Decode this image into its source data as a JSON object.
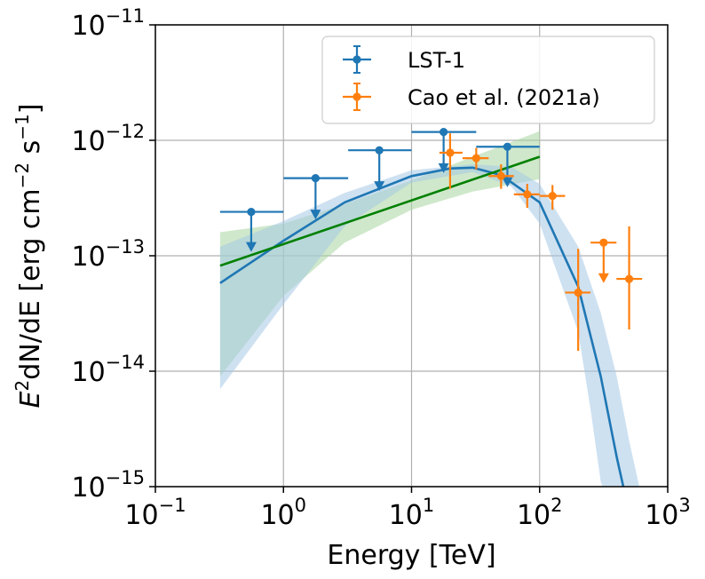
{
  "chart_data": {
    "type": "scatter",
    "xlabel": "Energy [TeV]",
    "ylabel_parts": [
      "E",
      "2",
      "dN/dE [erg cm",
      "−2",
      " s",
      "−1",
      "]"
    ],
    "x_scale": "log",
    "y_scale": "log",
    "xlim": [
      0.1,
      1000
    ],
    "ylim": [
      1e-15,
      1e-11
    ],
    "grid": true,
    "legend_position": "upper-right",
    "x_ticks": [
      {
        "value": 0.1,
        "base": "10",
        "exp": "−1"
      },
      {
        "value": 1,
        "base": "10",
        "exp": "0"
      },
      {
        "value": 10,
        "base": "10",
        "exp": "1"
      },
      {
        "value": 100,
        "base": "10",
        "exp": "2"
      },
      {
        "value": 1000,
        "base": "10",
        "exp": "3"
      }
    ],
    "y_ticks": [
      {
        "value": 1e-15,
        "base": "10",
        "exp": "−15"
      },
      {
        "value": 1e-14,
        "base": "10",
        "exp": "−14"
      },
      {
        "value": 1e-13,
        "base": "10",
        "exp": "−13"
      },
      {
        "value": 1e-12,
        "base": "10",
        "exp": "−12"
      },
      {
        "value": 1e-11,
        "base": "10",
        "exp": "−11"
      }
    ],
    "series": [
      {
        "name": "LST-1",
        "color": "#1f77b4",
        "kind": "upper_limits",
        "points": [
          {
            "x": 0.56,
            "xlo": 0.32,
            "xhi": 1.0,
            "y": 2.4e-13,
            "y_arrow_end": 1.1e-13
          },
          {
            "x": 1.78,
            "xlo": 1.0,
            "xhi": 3.2,
            "y": 4.7e-13,
            "y_arrow_end": 2.1e-13
          },
          {
            "x": 5.6,
            "xlo": 3.2,
            "xhi": 10.0,
            "y": 8.2e-13,
            "y_arrow_end": 3.7e-13
          },
          {
            "x": 17.8,
            "xlo": 10.0,
            "xhi": 32.0,
            "y": 1.18e-12,
            "y_arrow_end": 5.3e-13
          },
          {
            "x": 56.0,
            "xlo": 32.0,
            "xhi": 100.0,
            "y": 8.8e-13,
            "y_arrow_end": 4e-13
          }
        ]
      },
      {
        "name": "Cao et al. (2021a)",
        "color": "#ff7f0e",
        "kind": "points",
        "points": [
          {
            "x": 20,
            "xlo": 16.5,
            "xhi": 25,
            "y": 7.8e-13,
            "ylo": 3.8e-13,
            "yhi": 1.15e-12
          },
          {
            "x": 32,
            "xlo": 25,
            "xhi": 40,
            "y": 7e-13,
            "ylo": 5.6e-13,
            "yhi": 8.6e-13
          },
          {
            "x": 50,
            "xlo": 40,
            "xhi": 63,
            "y": 4.9e-13,
            "ylo": 3.8e-13,
            "yhi": 6.2e-13
          },
          {
            "x": 80,
            "xlo": 63,
            "xhi": 100,
            "y": 3.4e-13,
            "ylo": 2.6e-13,
            "yhi": 4.2e-13
          },
          {
            "x": 126,
            "xlo": 100,
            "xhi": 158,
            "y": 3.3e-13,
            "ylo": 2.5e-13,
            "yhi": 4.1e-13
          },
          {
            "x": 200,
            "xlo": 158,
            "xhi": 250,
            "y": 4.8e-14,
            "ylo": 1.5e-14,
            "yhi": 1.15e-13
          },
          {
            "x": 316,
            "xlo": 250,
            "xhi": 398,
            "y": 1.3e-13,
            "ul": true,
            "y_arrow_end": 5.9e-14
          },
          {
            "x": 500,
            "xlo": 398,
            "xhi": 631,
            "y": 6.3e-14,
            "ylo": 2.3e-14,
            "yhi": 1.8e-13
          }
        ]
      }
    ],
    "models": [
      {
        "kind": "log_parabola_fit",
        "color": "#1f77b4",
        "band_color": "#a6c8e6",
        "curve": [
          [
            0.32,
            5.8e-14
          ],
          [
            1,
            1.35e-13
          ],
          [
            3,
            2.9e-13
          ],
          [
            10,
            4.9e-13
          ],
          [
            20,
            5.7e-13
          ],
          [
            30,
            5.8e-13
          ],
          [
            50,
            5e-13
          ],
          [
            100,
            2.9e-13
          ],
          [
            200,
            5.4e-14
          ],
          [
            300,
            9e-15
          ],
          [
            400,
            1.8e-15
          ],
          [
            450,
            1e-15
          ]
        ],
        "band_upper": [
          [
            0.32,
            1.2e-13
          ],
          [
            1,
            2e-13
          ],
          [
            3,
            3.5e-13
          ],
          [
            10,
            5.5e-13
          ],
          [
            30,
            6.2e-13
          ],
          [
            60,
            5.9e-13
          ],
          [
            100,
            4.2e-13
          ],
          [
            200,
            1.2e-13
          ],
          [
            300,
            3.2e-14
          ],
          [
            400,
            9e-15
          ],
          [
            500,
            2.5e-15
          ],
          [
            600,
            1e-15
          ]
        ],
        "band_lower": [
          [
            0.32,
            7e-15
          ],
          [
            1,
            3.8e-14
          ],
          [
            3,
            1.8e-13
          ],
          [
            10,
            4.3e-13
          ],
          [
            30,
            5.3e-13
          ],
          [
            60,
            4e-13
          ],
          [
            100,
            1.9e-13
          ],
          [
            200,
            2.2e-14
          ],
          [
            250,
            4.6e-15
          ],
          [
            300,
            1.1e-15
          ],
          [
            310,
            1e-15
          ]
        ]
      },
      {
        "kind": "power_law_fit",
        "color": "#008000",
        "band_color": "#a8d5a0",
        "curve": [
          [
            0.32,
            8.2e-14
          ],
          [
            100,
            7.2e-13
          ]
        ],
        "band_upper": [
          [
            0.32,
            1.6e-13
          ],
          [
            1,
            1.9e-13
          ],
          [
            3,
            2.8e-13
          ],
          [
            10,
            4.5e-13
          ],
          [
            30,
            7.2e-13
          ],
          [
            100,
            1.2e-12
          ]
        ],
        "band_lower": [
          [
            0.32,
            9e-15
          ],
          [
            1,
            4.5e-14
          ],
          [
            3,
            1.3e-13
          ],
          [
            10,
            2.5e-13
          ],
          [
            30,
            3.6e-13
          ],
          [
            100,
            4.6e-13
          ]
        ]
      }
    ]
  }
}
